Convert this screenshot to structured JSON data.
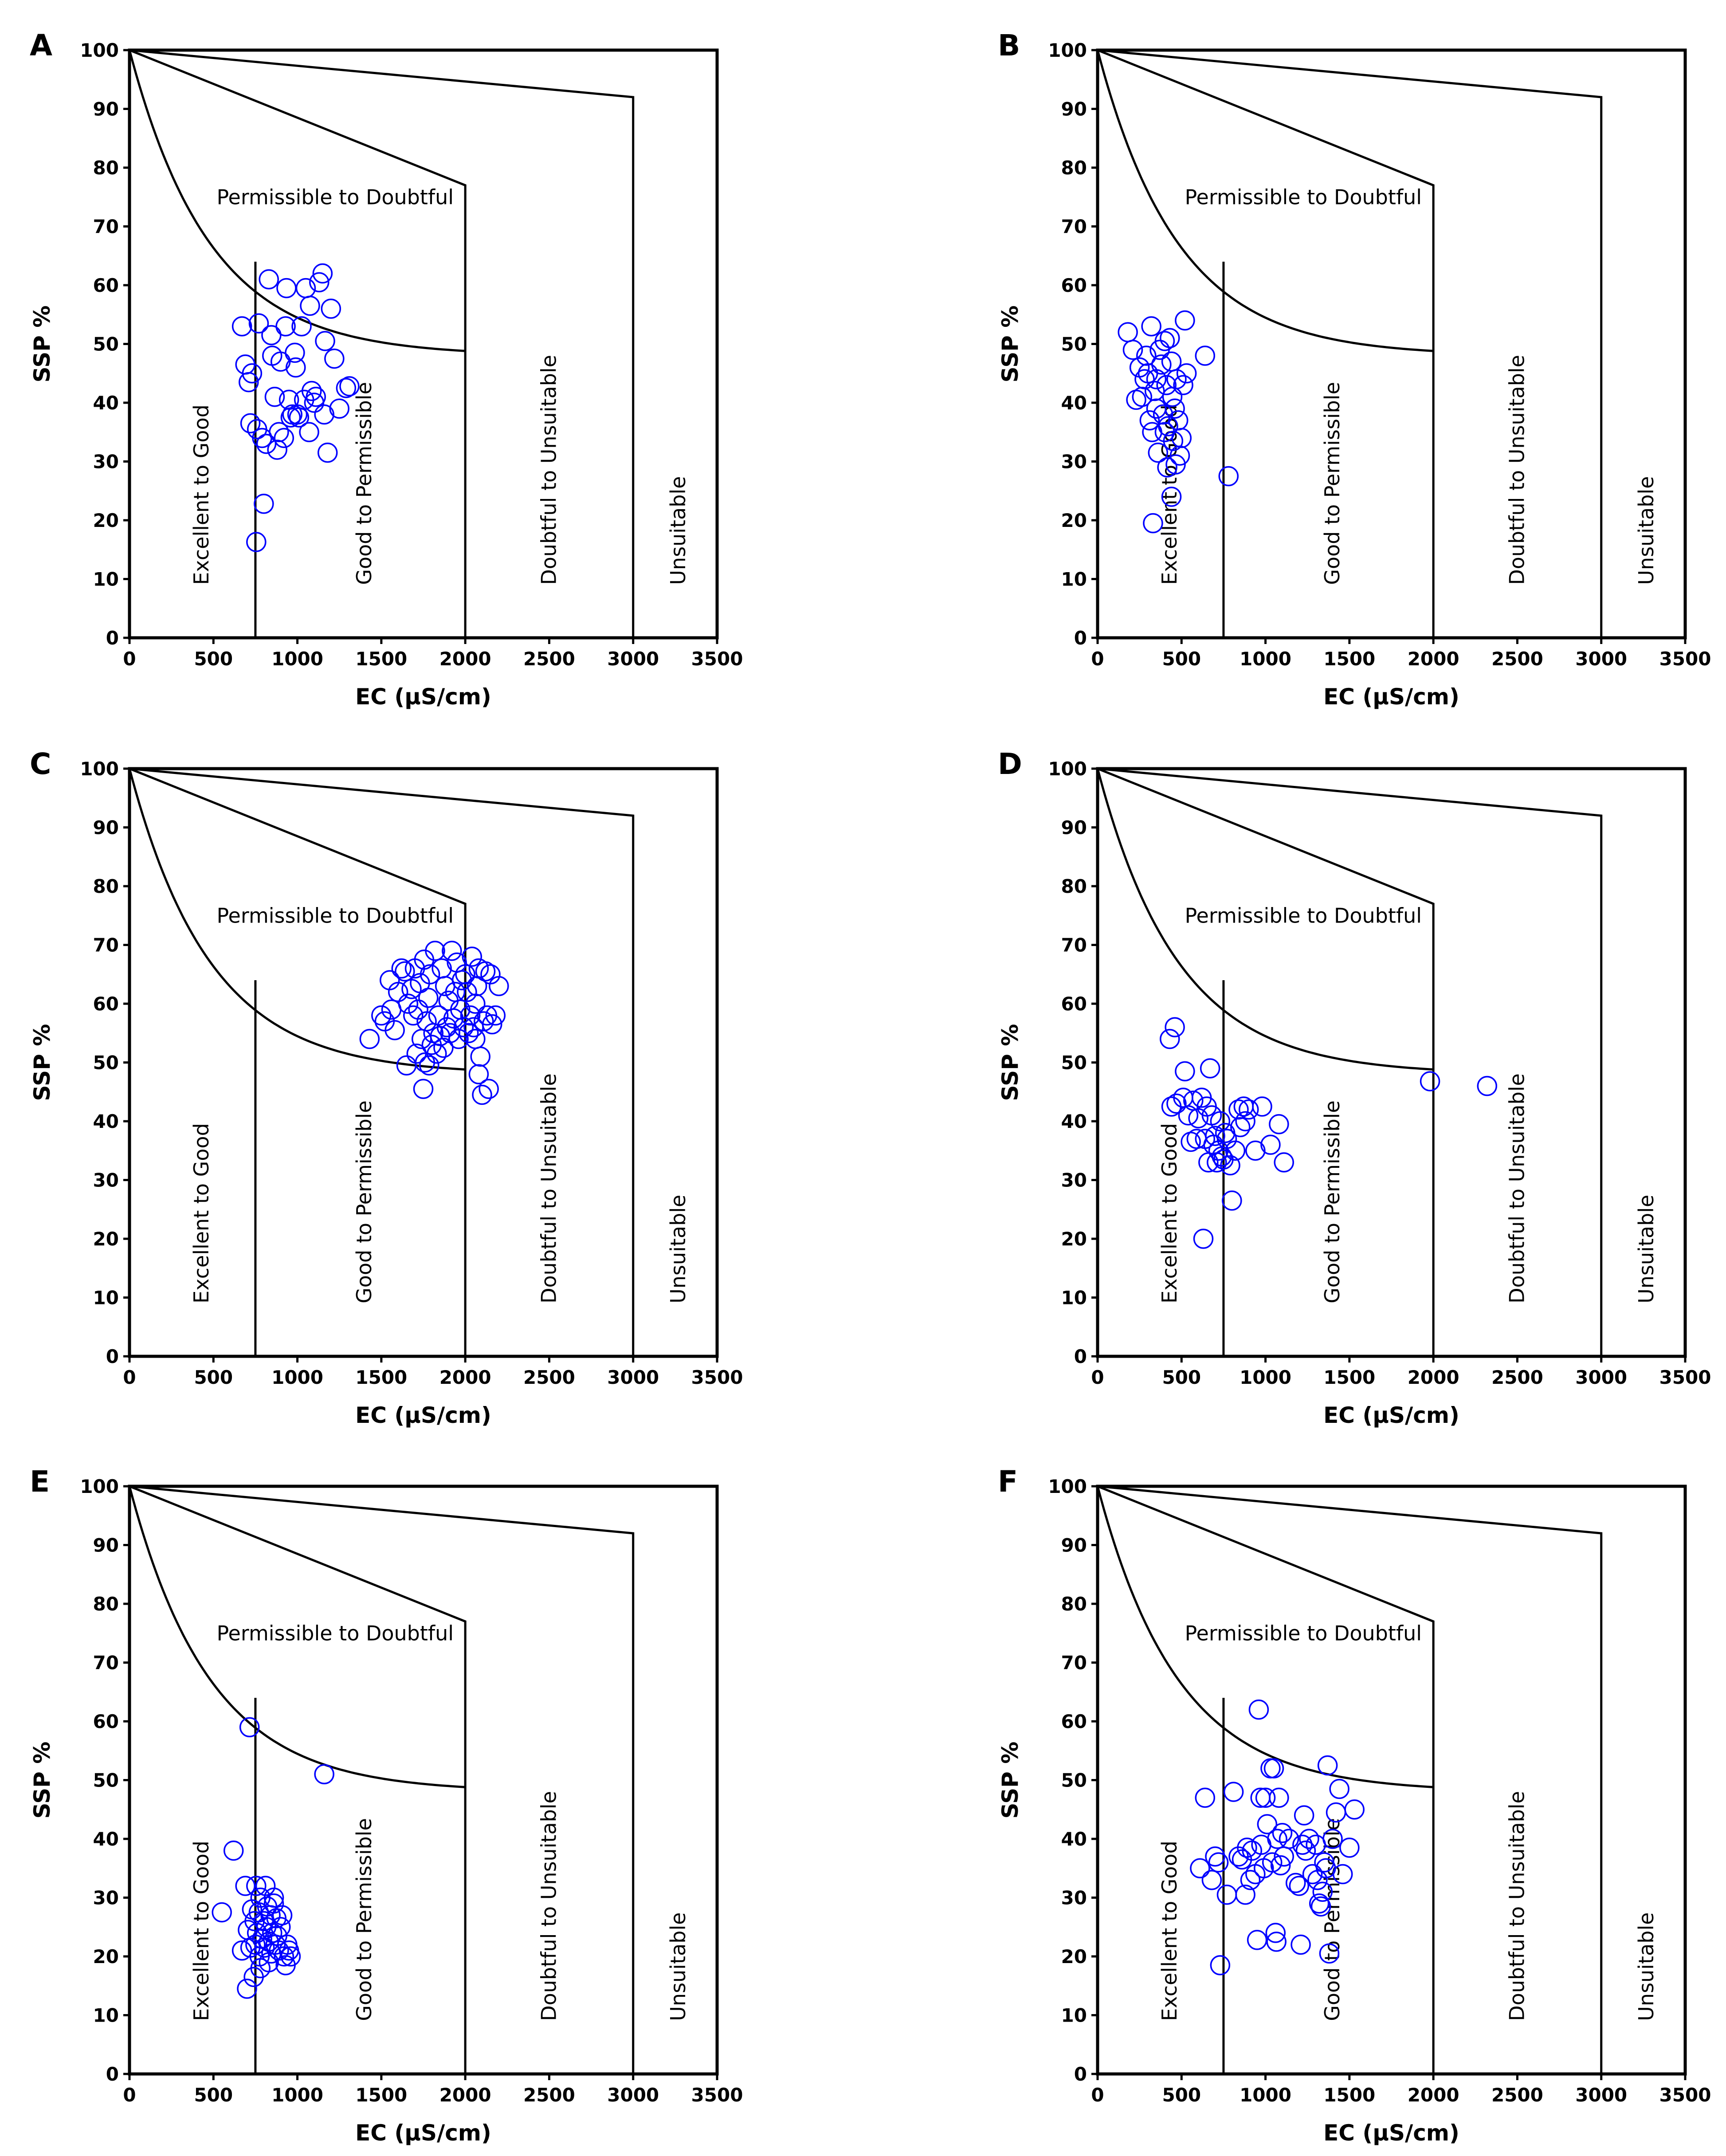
{
  "chart_data": [
    {
      "panel": "A",
      "type": "scatter",
      "xlabel": "EC (µS/cm)",
      "ylabel": "SSP %",
      "xlim": [
        0,
        3500
      ],
      "ylim": [
        0,
        100
      ],
      "xticks": [
        0,
        500,
        1000,
        1500,
        2000,
        2500,
        3000,
        3500
      ],
      "yticks": [
        0,
        10,
        20,
        30,
        40,
        50,
        60,
        70,
        80,
        90,
        100
      ],
      "zone_labels": [
        "Permissible to Doubtful",
        "Excellent to Good",
        "Good to Permissible",
        "Doubtful to Unsuitable",
        "Unsuitable"
      ],
      "points": [
        [
          670,
          53
        ],
        [
          690,
          46.5
        ],
        [
          710,
          43.5
        ],
        [
          720,
          36.5
        ],
        [
          730,
          45
        ],
        [
          760,
          35.5
        ],
        [
          770,
          53.5
        ],
        [
          790,
          34
        ],
        [
          800,
          22.8
        ],
        [
          815,
          33
        ],
        [
          830,
          61
        ],
        [
          845,
          51.5
        ],
        [
          850,
          48
        ],
        [
          865,
          41
        ],
        [
          880,
          32
        ],
        [
          890,
          35
        ],
        [
          900,
          47
        ],
        [
          920,
          34
        ],
        [
          930,
          53
        ],
        [
          935,
          59.5
        ],
        [
          950,
          40.5
        ],
        [
          960,
          37.5
        ],
        [
          970,
          38
        ],
        [
          985,
          48.5
        ],
        [
          990,
          46
        ],
        [
          1000,
          38
        ],
        [
          1010,
          37.5
        ],
        [
          1025,
          53
        ],
        [
          1040,
          40.5
        ],
        [
          1050,
          59.5
        ],
        [
          1070,
          35
        ],
        [
          1075,
          56.5
        ],
        [
          1085,
          42
        ],
        [
          1100,
          40
        ],
        [
          1110,
          41
        ],
        [
          1130,
          60.5
        ],
        [
          1150,
          62
        ],
        [
          1160,
          38
        ],
        [
          1165,
          50.5
        ],
        [
          1180,
          31.5
        ],
        [
          1200,
          56
        ],
        [
          1220,
          47.5
        ],
        [
          1250,
          39
        ],
        [
          1290,
          42.5
        ],
        [
          1310,
          42.8
        ],
        [
          755,
          16.3
        ]
      ]
    },
    {
      "panel": "B",
      "type": "scatter",
      "xlabel": "EC (µS/cm)",
      "ylabel": "SSP %",
      "xlim": [
        0,
        3500
      ],
      "ylim": [
        0,
        100
      ],
      "xticks": [
        0,
        500,
        1000,
        1500,
        2000,
        2500,
        3000,
        3500
      ],
      "yticks": [
        0,
        10,
        20,
        30,
        40,
        50,
        60,
        70,
        80,
        90,
        100
      ],
      "zone_labels": [
        "Permissible to Doubtful",
        "Excellent to Good",
        "Good to Permissible",
        "Doubtful to Unsuitable",
        "Unsuitable"
      ],
      "points": [
        [
          180,
          52
        ],
        [
          210,
          49
        ],
        [
          230,
          40.5
        ],
        [
          250,
          46
        ],
        [
          265,
          41
        ],
        [
          280,
          44
        ],
        [
          290,
          48
        ],
        [
          300,
          45
        ],
        [
          310,
          37
        ],
        [
          320,
          53
        ],
        [
          325,
          35
        ],
        [
          330,
          19.5
        ],
        [
          340,
          42
        ],
        [
          350,
          39
        ],
        [
          360,
          31.5
        ],
        [
          370,
          49
        ],
        [
          380,
          46.5
        ],
        [
          390,
          38
        ],
        [
          400,
          50.5
        ],
        [
          410,
          43
        ],
        [
          415,
          29
        ],
        [
          420,
          36
        ],
        [
          430,
          51
        ],
        [
          440,
          47
        ],
        [
          445,
          41
        ],
        [
          450,
          33.5
        ],
        [
          460,
          39
        ],
        [
          465,
          29.5
        ],
        [
          470,
          44
        ],
        [
          480,
          37
        ],
        [
          490,
          31
        ],
        [
          500,
          34
        ],
        [
          510,
          43
        ],
        [
          520,
          54
        ],
        [
          530,
          45
        ],
        [
          640,
          48
        ],
        [
          780,
          27.5
        ],
        [
          350,
          44
        ],
        [
          440,
          24
        ],
        [
          400,
          35
        ]
      ]
    },
    {
      "panel": "C",
      "type": "scatter",
      "xlabel": "EC (µS/cm)",
      "ylabel": "SSP %",
      "xlim": [
        0,
        3500
      ],
      "ylim": [
        0,
        100
      ],
      "xticks": [
        0,
        500,
        1000,
        1500,
        2000,
        2500,
        3000,
        3500
      ],
      "yticks": [
        0,
        10,
        20,
        30,
        40,
        50,
        60,
        70,
        80,
        90,
        100
      ],
      "zone_labels": [
        "Permissible to Doubtful",
        "Excellent to Good",
        "Good to Permissible",
        "Doubtful to Unsuitable",
        "Unsuitable"
      ],
      "points": [
        [
          1430,
          54
        ],
        [
          1500,
          58
        ],
        [
          1520,
          57
        ],
        [
          1550,
          64
        ],
        [
          1560,
          59
        ],
        [
          1580,
          55.5
        ],
        [
          1600,
          62
        ],
        [
          1620,
          66
        ],
        [
          1640,
          65.5
        ],
        [
          1650,
          49.5
        ],
        [
          1660,
          60
        ],
        [
          1680,
          62.5
        ],
        [
          1690,
          58
        ],
        [
          1700,
          66
        ],
        [
          1710,
          51.5
        ],
        [
          1720,
          59
        ],
        [
          1730,
          63.5
        ],
        [
          1740,
          54
        ],
        [
          1750,
          45.5
        ],
        [
          1755,
          67.5
        ],
        [
          1760,
          50
        ],
        [
          1770,
          57
        ],
        [
          1780,
          61
        ],
        [
          1785,
          49.5
        ],
        [
          1790,
          65
        ],
        [
          1800,
          53
        ],
        [
          1810,
          55
        ],
        [
          1820,
          69
        ],
        [
          1830,
          51.5
        ],
        [
          1840,
          58
        ],
        [
          1850,
          54.5
        ],
        [
          1860,
          66
        ],
        [
          1870,
          52.5
        ],
        [
          1880,
          63
        ],
        [
          1890,
          56
        ],
        [
          1900,
          60.5
        ],
        [
          1910,
          55
        ],
        [
          1920,
          69
        ],
        [
          1930,
          57.5
        ],
        [
          1940,
          62
        ],
        [
          1950,
          67
        ],
        [
          1960,
          54
        ],
        [
          1970,
          59
        ],
        [
          1980,
          64
        ],
        [
          1990,
          56
        ],
        [
          2000,
          65
        ],
        [
          2010,
          62
        ],
        [
          2020,
          55
        ],
        [
          2030,
          58
        ],
        [
          2040,
          68
        ],
        [
          2050,
          56
        ],
        [
          2060,
          60
        ],
        [
          2070,
          63
        ],
        [
          2080,
          48
        ],
        [
          2090,
          51
        ],
        [
          2100,
          44.5
        ],
        [
          2110,
          57
        ],
        [
          2120,
          65.5
        ],
        [
          2130,
          58
        ],
        [
          2140,
          45.5
        ],
        [
          2150,
          65
        ],
        [
          2160,
          56.5
        ],
        [
          2180,
          58
        ],
        [
          2200,
          63
        ],
        [
          2080,
          66
        ],
        [
          2060,
          54
        ]
      ]
    },
    {
      "panel": "D",
      "type": "scatter",
      "xlabel": "EC (µS/cm)",
      "ylabel": "SSP %",
      "xlim": [
        0,
        3500
      ],
      "ylim": [
        0,
        100
      ],
      "xticks": [
        0,
        500,
        1000,
        1500,
        2000,
        2500,
        3000,
        3500
      ],
      "yticks": [
        0,
        10,
        20,
        30,
        40,
        50,
        60,
        70,
        80,
        90,
        100
      ],
      "zone_labels": [
        "Permissible to Doubtful",
        "Excellent to Good",
        "Good to Permissible",
        "Doubtful to Unsuitable",
        "Unsuitable"
      ],
      "points": [
        [
          430,
          54
        ],
        [
          440,
          42.5
        ],
        [
          460,
          56
        ],
        [
          470,
          43
        ],
        [
          510,
          44
        ],
        [
          520,
          48.5
        ],
        [
          540,
          41
        ],
        [
          555,
          36.5
        ],
        [
          570,
          43.5
        ],
        [
          590,
          37
        ],
        [
          600,
          40.5
        ],
        [
          620,
          44
        ],
        [
          630,
          20
        ],
        [
          640,
          37
        ],
        [
          650,
          42.5
        ],
        [
          660,
          33
        ],
        [
          670,
          49
        ],
        [
          680,
          41
        ],
        [
          690,
          36
        ],
        [
          700,
          37.5
        ],
        [
          710,
          33
        ],
        [
          720,
          35
        ],
        [
          730,
          40
        ],
        [
          740,
          34
        ],
        [
          750,
          33.5
        ],
        [
          760,
          38
        ],
        [
          770,
          37
        ],
        [
          790,
          32.5
        ],
        [
          800,
          26.5
        ],
        [
          820,
          35
        ],
        [
          840,
          42
        ],
        [
          850,
          39
        ],
        [
          870,
          42.5
        ],
        [
          880,
          40
        ],
        [
          900,
          42
        ],
        [
          940,
          35
        ],
        [
          980,
          42.5
        ],
        [
          1030,
          36
        ],
        [
          1080,
          39.5
        ],
        [
          1110,
          33
        ],
        [
          1980,
          46.8
        ],
        [
          2320,
          46
        ]
      ]
    },
    {
      "panel": "E",
      "type": "scatter",
      "xlabel": "EC (µS/cm)",
      "ylabel": "SSP %",
      "xlim": [
        0,
        3500
      ],
      "ylim": [
        0,
        100
      ],
      "xticks": [
        0,
        500,
        1000,
        1500,
        2000,
        2500,
        3000,
        3500
      ],
      "yticks": [
        0,
        10,
        20,
        30,
        40,
        50,
        60,
        70,
        80,
        90,
        100
      ],
      "zone_labels": [
        "Permissible to Doubtful",
        "Excellent to Good",
        "Good to Permissible",
        "Doubtful to Unsuitable",
        "Unsuitable"
      ],
      "points": [
        [
          550,
          27.5
        ],
        [
          620,
          38
        ],
        [
          670,
          21
        ],
        [
          690,
          32
        ],
        [
          700,
          14.5
        ],
        [
          705,
          24.5
        ],
        [
          715,
          59
        ],
        [
          720,
          21.5
        ],
        [
          730,
          28
        ],
        [
          740,
          16.5
        ],
        [
          745,
          26
        ],
        [
          750,
          22
        ],
        [
          755,
          32
        ],
        [
          760,
          24
        ],
        [
          770,
          27.5
        ],
        [
          775,
          20
        ],
        [
          780,
          30
        ],
        [
          790,
          23
        ],
        [
          800,
          26
        ],
        [
          805,
          21.5
        ],
        [
          810,
          32
        ],
        [
          815,
          25
        ],
        [
          820,
          28.5
        ],
        [
          830,
          22.5
        ],
        [
          840,
          27
        ],
        [
          845,
          20.5
        ],
        [
          850,
          24
        ],
        [
          860,
          29
        ],
        [
          870,
          22
        ],
        [
          875,
          26.5
        ],
        [
          880,
          23.5
        ],
        [
          890,
          21
        ],
        [
          900,
          25
        ],
        [
          910,
          27
        ],
        [
          920,
          20
        ],
        [
          930,
          18.5
        ],
        [
          940,
          22
        ],
        [
          950,
          21
        ],
        [
          960,
          20
        ],
        [
          1160,
          51
        ],
        [
          780,
          18
        ],
        [
          830,
          19
        ],
        [
          860,
          30
        ]
      ]
    },
    {
      "panel": "F",
      "type": "scatter",
      "xlabel": "EC (µS/cm)",
      "ylabel": "SSP %",
      "xlim": [
        0,
        3500
      ],
      "ylim": [
        0,
        100
      ],
      "xticks": [
        0,
        500,
        1000,
        1500,
        2000,
        2500,
        3000,
        3500
      ],
      "yticks": [
        0,
        10,
        20,
        30,
        40,
        50,
        60,
        70,
        80,
        90,
        100
      ],
      "zone_labels": [
        "Permissible to Doubtful",
        "Excellent to Good",
        "Good to Permissible",
        "Doubtful to Unsuitable",
        "Unsuitable"
      ],
      "points": [
        [
          610,
          35
        ],
        [
          640,
          47
        ],
        [
          680,
          33
        ],
        [
          700,
          37
        ],
        [
          720,
          36
        ],
        [
          730,
          18.5
        ],
        [
          770,
          30.5
        ],
        [
          810,
          48
        ],
        [
          840,
          37
        ],
        [
          860,
          36.5
        ],
        [
          880,
          30.5
        ],
        [
          890,
          38.5
        ],
        [
          910,
          33
        ],
        [
          920,
          38
        ],
        [
          940,
          34
        ],
        [
          950,
          22.8
        ],
        [
          960,
          62
        ],
        [
          970,
          47
        ],
        [
          975,
          39
        ],
        [
          990,
          35
        ],
        [
          1000,
          47
        ],
        [
          1010,
          42.5
        ],
        [
          1030,
          52
        ],
        [
          1040,
          36
        ],
        [
          1050,
          52
        ],
        [
          1060,
          24
        ],
        [
          1065,
          22.5
        ],
        [
          1070,
          40
        ],
        [
          1080,
          47
        ],
        [
          1090,
          35.5
        ],
        [
          1100,
          41
        ],
        [
          1110,
          37
        ],
        [
          1140,
          40
        ],
        [
          1180,
          32.5
        ],
        [
          1200,
          32
        ],
        [
          1210,
          22
        ],
        [
          1220,
          39
        ],
        [
          1230,
          44
        ],
        [
          1240,
          38
        ],
        [
          1260,
          40
        ],
        [
          1280,
          34
        ],
        [
          1300,
          39
        ],
        [
          1310,
          33
        ],
        [
          1320,
          29
        ],
        [
          1330,
          28.5
        ],
        [
          1340,
          31
        ],
        [
          1350,
          36
        ],
        [
          1360,
          35
        ],
        [
          1370,
          52.5
        ],
        [
          1380,
          20.5
        ],
        [
          1400,
          40
        ],
        [
          1420,
          44.5
        ],
        [
          1440,
          48.5
        ],
        [
          1460,
          34
        ],
        [
          1500,
          38.5
        ],
        [
          1530,
          45
        ]
      ]
    }
  ]
}
